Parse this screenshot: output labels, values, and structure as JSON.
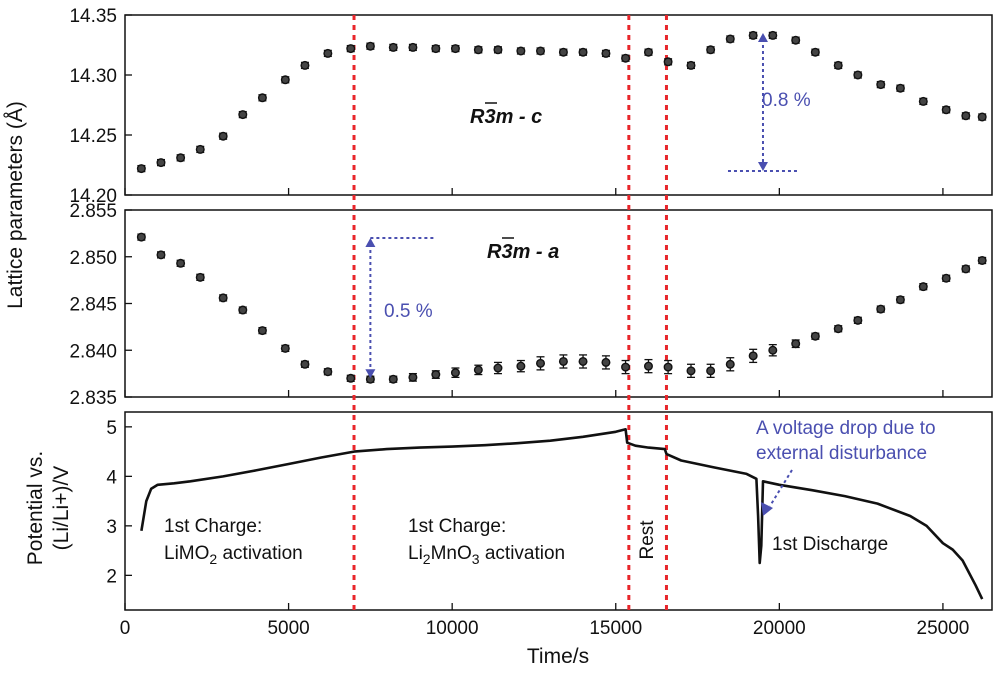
{
  "chart_data": [
    {
      "type": "scatter",
      "panel": "c",
      "phase_label": {
        "italic": "R",
        "bar": "3",
        "rest": "m - c"
      },
      "ylim": [
        14.2,
        14.35
      ],
      "yticks": [
        "14.20",
        "14.25",
        "14.30",
        "14.35"
      ],
      "ytick_values": [
        14.2,
        14.25,
        14.3,
        14.35
      ],
      "x": [
        500,
        1100,
        1700,
        2300,
        3000,
        3600,
        4200,
        4900,
        5500,
        6200,
        6900,
        7500,
        8200,
        8800,
        9500,
        10100,
        10800,
        11400,
        12100,
        12700,
        13400,
        14000,
        14700,
        15300,
        16000,
        16600,
        17300,
        17900,
        18500,
        19200,
        19800,
        20500,
        21100,
        21800,
        22400,
        23100,
        23700,
        24400,
        25100,
        25700,
        26200
      ],
      "y": [
        14.222,
        14.227,
        14.231,
        14.238,
        14.249,
        14.267,
        14.281,
        14.296,
        14.308,
        14.318,
        14.322,
        14.324,
        14.323,
        14.323,
        14.322,
        14.322,
        14.321,
        14.321,
        14.32,
        14.32,
        14.319,
        14.319,
        14.318,
        14.314,
        14.319,
        14.311,
        14.308,
        14.321,
        14.33,
        14.333,
        14.333,
        14.329,
        14.319,
        14.308,
        14.3,
        14.292,
        14.289,
        14.278,
        14.271,
        14.266,
        14.265
      ],
      "annotation": {
        "text": "0.8 %",
        "x": 19500,
        "y_from": 14.22,
        "y_to": 14.335
      }
    },
    {
      "type": "scatter",
      "panel": "a",
      "phase_label": {
        "italic": "R",
        "bar": "3",
        "rest": "m - a"
      },
      "ylim": [
        2.835,
        2.855
      ],
      "yticks": [
        "2.835",
        "2.840",
        "2.845",
        "2.850",
        "2.855"
      ],
      "ytick_values": [
        2.835,
        2.84,
        2.845,
        2.85,
        2.855
      ],
      "x": [
        500,
        1100,
        1700,
        2300,
        3000,
        3600,
        4200,
        4900,
        5500,
        6200,
        6900,
        7500,
        8200,
        8800,
        9500,
        10100,
        10800,
        11400,
        12100,
        12700,
        13400,
        14000,
        14700,
        15300,
        16000,
        16600,
        17300,
        17900,
        18500,
        19200,
        19800,
        20500,
        21100,
        21800,
        22400,
        23100,
        23700,
        24400,
        25100,
        25700,
        26200
      ],
      "y": [
        2.8521,
        2.8502,
        2.8493,
        2.8478,
        2.8456,
        2.8443,
        2.8421,
        2.8402,
        2.8385,
        2.8377,
        2.837,
        2.8369,
        2.8369,
        2.8371,
        2.8374,
        2.8376,
        2.8379,
        2.8381,
        2.8383,
        2.8386,
        2.8388,
        2.8388,
        2.8387,
        2.8382,
        2.8383,
        2.8382,
        2.8378,
        2.8378,
        2.8385,
        2.8394,
        2.84,
        2.8407,
        2.8415,
        2.8423,
        2.8432,
        2.8444,
        2.8454,
        2.8468,
        2.8477,
        2.8487,
        2.8496
      ],
      "yerr": [
        0.0001,
        0.0001,
        0.0001,
        0.0001,
        0.0001,
        0.0001,
        0.0001,
        0.0001,
        0.0001,
        0.0001,
        0.0002,
        0.0003,
        0.0003,
        0.0004,
        0.0004,
        0.0005,
        0.0005,
        0.0006,
        0.0006,
        0.0007,
        0.0007,
        0.0007,
        0.0007,
        0.0007,
        0.0007,
        0.0007,
        0.0007,
        0.0007,
        0.0007,
        0.0007,
        0.0006,
        0.0004,
        0.0003,
        0.0002,
        0.0001,
        0.0001,
        0.0001,
        0.0001,
        0.0001,
        0.0001,
        0.0001
      ],
      "annotation": {
        "text": "0.5 %",
        "x": 7500,
        "y_from": 2.837,
        "y_to": 2.852
      }
    },
    {
      "type": "line",
      "panel": "potential",
      "ylabel": "Potential vs.\n(Li/Li+)/V",
      "ylim": [
        1.3,
        5.3
      ],
      "yticks": [
        "2",
        "3",
        "4",
        "5"
      ],
      "ytick_values": [
        2,
        3,
        4,
        5
      ],
      "x": [
        500,
        650,
        800,
        1000,
        1500,
        2000,
        3000,
        4000,
        5000,
        6000,
        7000,
        8000,
        9000,
        10000,
        11000,
        12000,
        13000,
        14000,
        15000,
        15300,
        15350,
        15600,
        16000,
        16500,
        16550,
        17000,
        18000,
        19000,
        19300,
        19350,
        19400,
        19450,
        19500,
        20000,
        21000,
        22000,
        23000,
        24000,
        24500,
        25000,
        25300,
        25600,
        26000,
        26200
      ],
      "y": [
        2.9,
        3.5,
        3.75,
        3.83,
        3.86,
        3.9,
        4.0,
        4.12,
        4.25,
        4.38,
        4.5,
        4.55,
        4.58,
        4.6,
        4.63,
        4.67,
        4.72,
        4.8,
        4.9,
        4.95,
        4.68,
        4.62,
        4.58,
        4.55,
        4.45,
        4.32,
        4.18,
        4.05,
        3.95,
        3.2,
        2.25,
        2.6,
        3.9,
        3.83,
        3.72,
        3.6,
        3.45,
        3.2,
        3.0,
        2.65,
        2.52,
        2.3,
        1.8,
        1.52
      ]
    }
  ],
  "shared": {
    "xlim": [
      0,
      26500
    ],
    "xticks": [
      "0",
      "5000",
      "10000",
      "15000",
      "20000",
      "25000"
    ],
    "xtick_values": [
      0,
      5000,
      10000,
      15000,
      20000,
      25000
    ],
    "xlabel": "Time/s",
    "ylabel_top": "Lattice parameters (Å)",
    "dashed_lines_x": [
      7000,
      15400,
      16550
    ],
    "colors": {
      "dash": "#e8262b",
      "annotation": "#4a4fb0",
      "data": "#111111"
    }
  },
  "annotations": {
    "first_charge_a_line1": "1st Charge:",
    "first_charge_a_line2_pre": "LiMO",
    "first_charge_a_line2_sub": "2",
    "first_charge_a_line2_post": " activation",
    "first_charge_b_line1": "1st Charge:",
    "first_charge_b_line2_p1": "Li",
    "first_charge_b_line2_s1": "2",
    "first_charge_b_line2_p2": "MnO",
    "first_charge_b_line2_s2": "3",
    "first_charge_b_line2_p3": " activation",
    "rest": "Rest",
    "first_discharge": "1st Discharge",
    "voltage_drop_line1": "A voltage drop due to",
    "voltage_drop_line2": "external disturbance"
  }
}
